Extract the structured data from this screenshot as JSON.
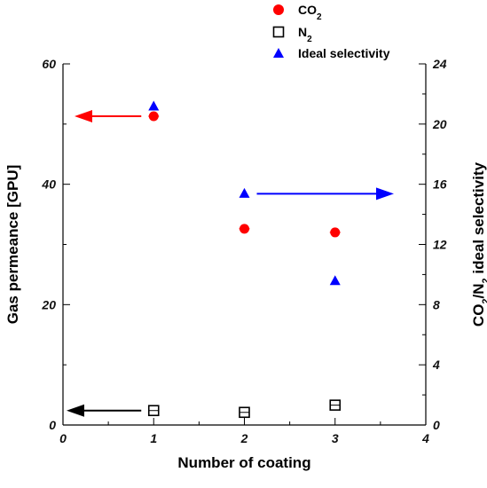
{
  "chart_data": {
    "type": "scatter",
    "xlabel": "Number of coating",
    "ylabel": "Gas permeance [GPU]",
    "y2label_parts": [
      "CO",
      "2",
      "/N",
      "2",
      " ideal selectivity"
    ],
    "xlim": [
      0,
      4
    ],
    "ylim": [
      0,
      60
    ],
    "y2lim": [
      0,
      24
    ],
    "x_ticks": [
      "0",
      "1",
      "2",
      "3",
      "4"
    ],
    "y_ticks": [
      "0",
      "20",
      "40",
      "60"
    ],
    "y2_ticks": [
      "0",
      "4",
      "8",
      "12",
      "16",
      "20",
      "24"
    ],
    "grid": false,
    "legend_position": "top-right, outside plot",
    "series": [
      {
        "name_parts": [
          "CO",
          "2"
        ],
        "marker": "filled-circle",
        "color": "#ff0000",
        "axis": "left",
        "x": [
          1,
          2,
          3
        ],
        "y": [
          51.3,
          32.6,
          32.0
        ]
      },
      {
        "name_parts": [
          "N",
          "2"
        ],
        "marker": "open-square",
        "color": "#000000",
        "axis": "left",
        "x": [
          1,
          2,
          3
        ],
        "y": [
          2.4,
          2.1,
          3.3
        ]
      },
      {
        "name": "Ideal selectivity",
        "marker": "filled-triangle",
        "color": "#0000ff",
        "axis": "right",
        "x": [
          1,
          2,
          3
        ],
        "y": [
          21.2,
          15.4,
          9.6
        ]
      }
    ],
    "annotations": [
      {
        "type": "arrow",
        "color": "#ff0000",
        "direction": "left",
        "points_to": "left-axis"
      },
      {
        "type": "arrow",
        "color": "#0000ff",
        "direction": "right",
        "points_to": "right-axis"
      },
      {
        "type": "arrow",
        "color": "#000000",
        "direction": "left",
        "points_to": "left-axis"
      }
    ]
  }
}
